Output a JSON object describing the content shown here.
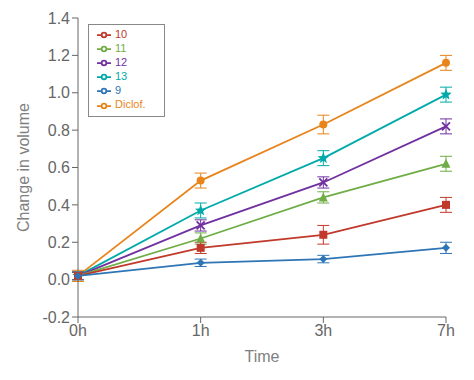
{
  "chart_data": {
    "type": "line",
    "xlabel": "Time",
    "ylabel": "Change in volume",
    "categories": [
      "0h",
      "1h",
      "3h",
      "7h"
    ],
    "ylim": [
      -0.2,
      1.4
    ],
    "yticks": [
      -0.2,
      {
        "value": 0,
        "label": "0.0"
      },
      0.2,
      0.4,
      0.6,
      0.8,
      {
        "value": 1,
        "label": "1.0"
      },
      1.2,
      1.4
    ],
    "grid": false,
    "legend": "upper left",
    "series": [
      {
        "name": "Diclof.",
        "color": "#E8841A",
        "marker": "circle",
        "values": [
          0.02,
          0.53,
          0.83,
          1.16
        ],
        "errors": [
          0.03,
          0.04,
          0.05,
          0.04
        ]
      },
      {
        "name": "13",
        "color": "#00AAAA",
        "marker": "star",
        "values": [
          0.02,
          0.37,
          0.65,
          0.99
        ],
        "errors": [
          0.02,
          0.04,
          0.04,
          0.04
        ]
      },
      {
        "name": "12",
        "color": "#7030A0",
        "marker": "x",
        "values": [
          0.02,
          0.29,
          0.52,
          0.82
        ],
        "errors": [
          0.02,
          0.03,
          0.03,
          0.04
        ]
      },
      {
        "name": "11",
        "color": "#70AD47",
        "marker": "triangle",
        "values": [
          0.02,
          0.22,
          0.44,
          0.62
        ],
        "errors": [
          0.02,
          0.03,
          0.03,
          0.04
        ]
      },
      {
        "name": "10",
        "color": "#C0392B",
        "marker": "square",
        "values": [
          0.02,
          0.17,
          0.24,
          0.4
        ],
        "errors": [
          0.02,
          0.03,
          0.05,
          0.04
        ]
      },
      {
        "name": "9",
        "color": "#2E75B6",
        "marker": "diamond",
        "values": [
          0.02,
          0.09,
          0.11,
          0.17
        ],
        "errors": [
          0.02,
          0.02,
          0.02,
          0.03
        ]
      }
    ]
  }
}
